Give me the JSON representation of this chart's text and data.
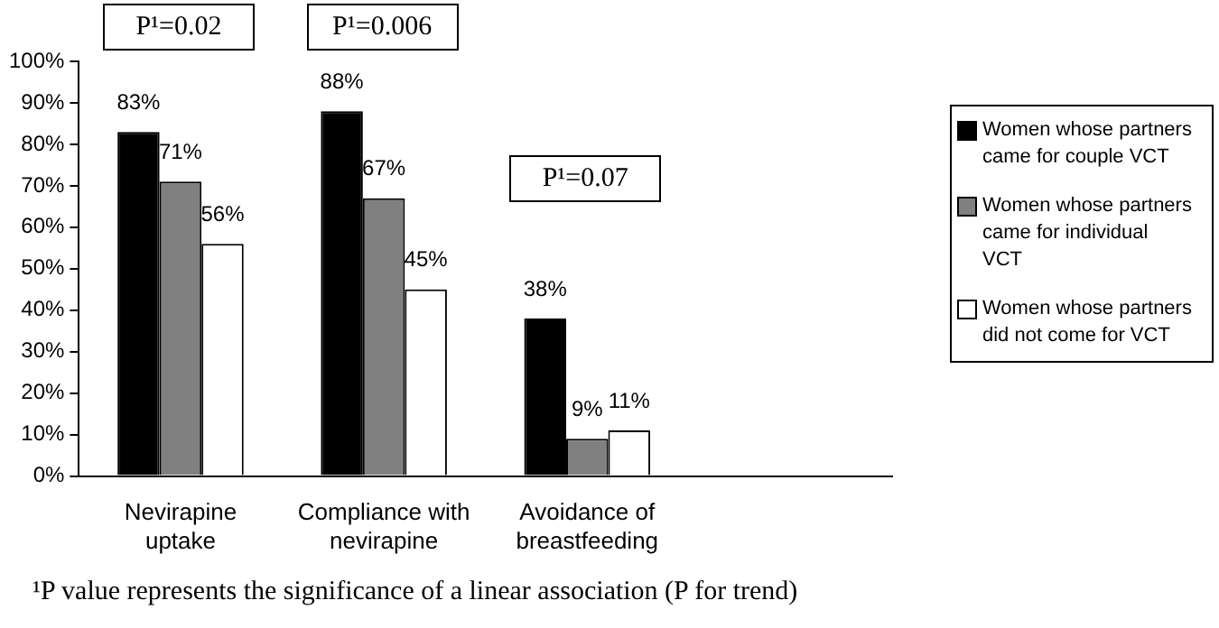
{
  "chart_data": {
    "type": "bar",
    "categories": [
      "Nevirapine uptake",
      "Compliance with nevirapine",
      "Avoidance of breastfeeding",
      null
    ],
    "series": [
      {
        "name": "Women whose partners came for couple VCT",
        "color": "#000000",
        "values": [
          83,
          88,
          38,
          null
        ],
        "value_labels": [
          "83%",
          "88%",
          "38%",
          null
        ]
      },
      {
        "name": "Women whose partners came for individual VCT",
        "color": "#808080",
        "values": [
          71,
          67,
          9,
          null
        ],
        "value_labels": [
          "71%",
          "67%",
          "9%",
          null
        ]
      },
      {
        "name": "Women whose partners did not come for VCT",
        "color": "#ffffff",
        "values": [
          56,
          45,
          11,
          null
        ],
        "value_labels": [
          "56%",
          "45%",
          "11%",
          null
        ]
      }
    ],
    "ylim": [
      0,
      100
    ],
    "yticks": [
      {
        "value": 0,
        "label": "0%"
      },
      {
        "value": 10,
        "label": "10%"
      },
      {
        "value": 20,
        "label": "20%"
      },
      {
        "value": 30,
        "label": "30%"
      },
      {
        "value": 40,
        "label": "40%"
      },
      {
        "value": 50,
        "label": "50%"
      },
      {
        "value": 60,
        "label": "60%"
      },
      {
        "value": 70,
        "label": "70%"
      },
      {
        "value": 80,
        "label": "80%"
      },
      {
        "value": 90,
        "label": "90%"
      },
      {
        "value": 100,
        "label": "100%"
      }
    ],
    "grid": false,
    "legend": "right",
    "annotations": [
      "P¹=0.02",
      "P¹=0.006",
      "P¹=0.07",
      "¹P value represents the significance of a linear association (P for trend)"
    ]
  }
}
